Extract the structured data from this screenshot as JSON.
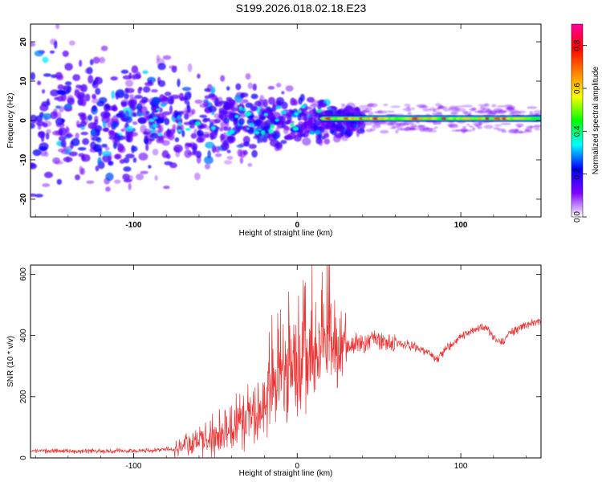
{
  "title": "S199.2026.018.02.18.E23",
  "chart_data": [
    {
      "type": "heatmap",
      "xlabel": "Height of straight line (km)",
      "ylabel": "Frequency (Hz)",
      "xlim": [
        -163,
        149
      ],
      "ylim": [
        -24.5,
        24.5
      ],
      "xticks": [
        -100,
        0,
        100
      ],
      "yticks": [
        -20,
        -10,
        0,
        10,
        20
      ],
      "colorbar": {
        "label": "Normalized spectral amplitude",
        "range": [
          0,
          0.9
        ],
        "ticks": [
          0.0,
          0.2,
          0.4,
          0.6,
          0.8
        ],
        "colormap": [
          "#ffffff",
          "#8000ff",
          "#0000ff",
          "#00ffff",
          "#00ff00",
          "#ffff00",
          "#ff8000",
          "#ff0000",
          "#ff00a0"
        ]
      },
      "description_features": {
        "noise_region_x": [
          -163,
          15
        ],
        "tone_region_x": [
          15,
          149
        ],
        "tone_frequency_hz": 0.5
      }
    },
    {
      "type": "line",
      "xlabel": "Height of straight line (km)",
      "ylabel": "SNR (10 * v/v)",
      "xlim": [
        -163,
        149
      ],
      "ylim": [
        0,
        630
      ],
      "xticks": [
        -100,
        0,
        100
      ],
      "yticks": [
        0,
        200,
        400,
        600
      ],
      "line_color": "#ee3333",
      "series": [
        {
          "x": [
            -163,
            -140,
            -120,
            -100,
            -90,
            -80,
            -70,
            -60,
            -50,
            -40,
            -30,
            -20,
            -10,
            0,
            5,
            10,
            15,
            20,
            25,
            30,
            40,
            50,
            60,
            70,
            80,
            85,
            90,
            100,
            110,
            115,
            120,
            125,
            130,
            140,
            149
          ],
          "values": [
            22,
            22,
            22,
            24,
            24,
            28,
            35,
            55,
            75,
            100,
            130,
            175,
            250,
            290,
            320,
            330,
            355,
            355,
            360,
            365,
            375,
            385,
            375,
            365,
            345,
            320,
            350,
            395,
            425,
            430,
            395,
            375,
            410,
            435,
            445
          ]
        }
      ]
    }
  ]
}
